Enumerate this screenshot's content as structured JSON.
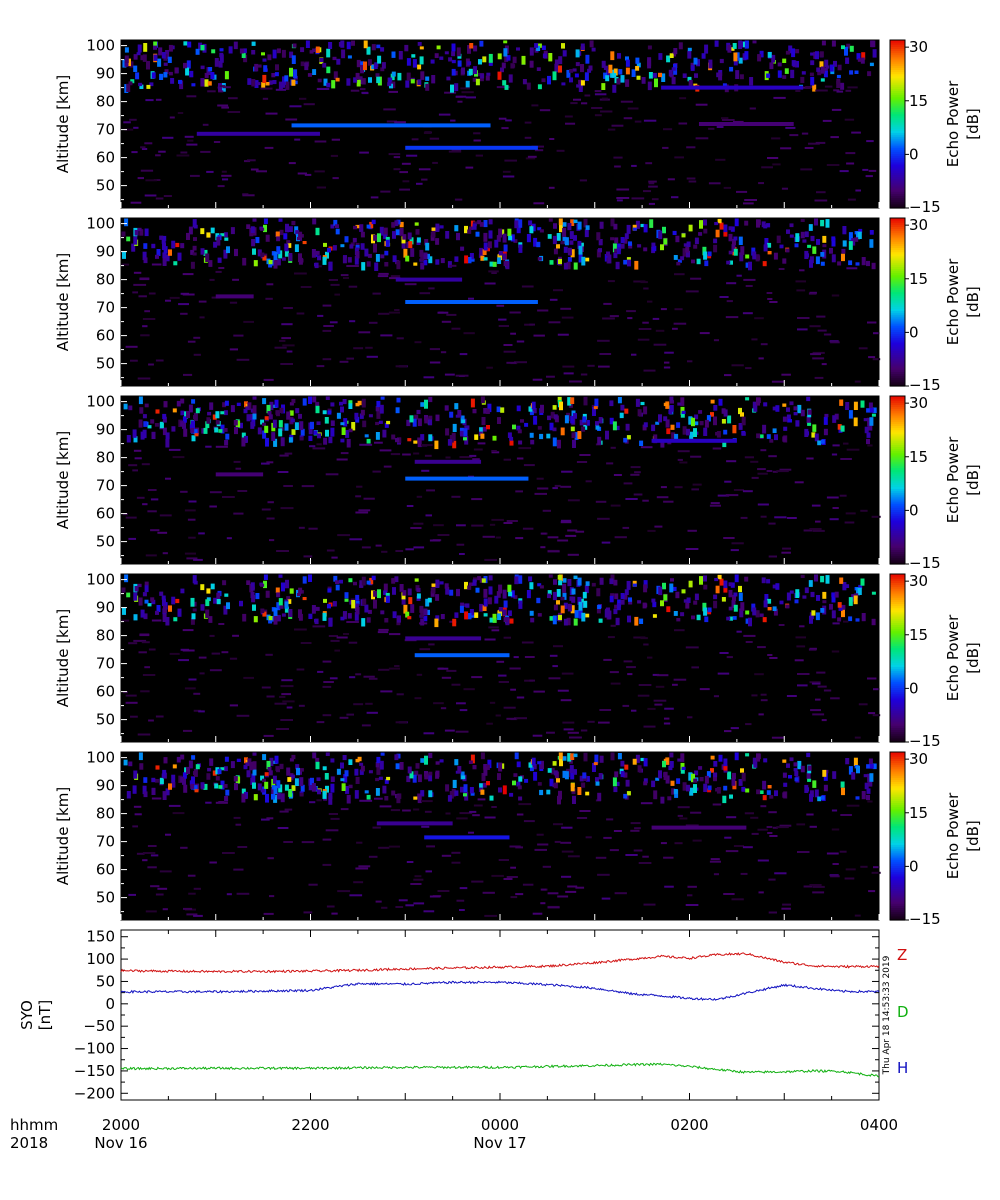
{
  "chart_data": [
    {
      "type": "heatmap",
      "ylabel": "Altitude [km]",
      "yticks": [
        "50",
        "60",
        "70",
        "80",
        "90",
        "100"
      ],
      "ylim": [
        42,
        102
      ],
      "xlim_hours": [
        20,
        28
      ],
      "colorbar": {
        "label_line1": "Echo Power",
        "label_line2": "[dB]",
        "ticks": [
          "30",
          "15",
          "0",
          "−15"
        ],
        "range": [
          -15,
          32
        ]
      },
      "features": [
        {
          "start": 21.8,
          "end": 23.9,
          "alt": 71.5,
          "dB": 2
        },
        {
          "start": 23.0,
          "end": 24.4,
          "alt": 63.5,
          "dB": 0
        },
        {
          "start": 20.8,
          "end": 22.1,
          "alt": 68.5,
          "dB": -7
        },
        {
          "start": 25.7,
          "end": 27.2,
          "alt": 85.0,
          "dB": -5
        },
        {
          "start": 26.1,
          "end": 27.1,
          "alt": 72.0,
          "dB": -10
        }
      ]
    },
    {
      "type": "heatmap",
      "ylabel": "Altitude [km]",
      "yticks": [
        "50",
        "60",
        "70",
        "80",
        "90",
        "100"
      ],
      "ylim": [
        42,
        102
      ],
      "xlim_hours": [
        20,
        28
      ],
      "colorbar": {
        "label_line1": "Echo Power",
        "label_line2": "[dB]",
        "ticks": [
          "30",
          "15",
          "0",
          "−15"
        ],
        "range": [
          -15,
          32
        ]
      },
      "features": [
        {
          "start": 23.0,
          "end": 24.4,
          "alt": 72.0,
          "dB": 2
        },
        {
          "start": 22.9,
          "end": 23.6,
          "alt": 80.0,
          "dB": -7
        },
        {
          "start": 21.0,
          "end": 21.4,
          "alt": 74.0,
          "dB": -10
        }
      ]
    },
    {
      "type": "heatmap",
      "ylabel": "Altitude [km]",
      "yticks": [
        "50",
        "60",
        "70",
        "80",
        "90",
        "100"
      ],
      "ylim": [
        42,
        102
      ],
      "xlim_hours": [
        20,
        28
      ],
      "colorbar": {
        "label_line1": "Echo Power",
        "label_line2": "[dB]",
        "ticks": [
          "30",
          "15",
          "0",
          "−15"
        ],
        "range": [
          -15,
          32
        ]
      },
      "features": [
        {
          "start": 23.0,
          "end": 24.3,
          "alt": 72.5,
          "dB": 2
        },
        {
          "start": 25.6,
          "end": 26.5,
          "alt": 86.0,
          "dB": -5
        },
        {
          "start": 21.0,
          "end": 21.5,
          "alt": 74.0,
          "dB": -10
        },
        {
          "start": 23.1,
          "end": 23.8,
          "alt": 78.5,
          "dB": -8
        }
      ]
    },
    {
      "type": "heatmap",
      "ylabel": "Altitude [km]",
      "yticks": [
        "50",
        "60",
        "70",
        "80",
        "90",
        "100"
      ],
      "ylim": [
        42,
        102
      ],
      "xlim_hours": [
        20,
        28
      ],
      "colorbar": {
        "label_line1": "Echo Power",
        "label_line2": "[dB]",
        "ticks": [
          "30",
          "15",
          "0",
          "−15"
        ],
        "range": [
          -15,
          32
        ]
      },
      "features": [
        {
          "start": 23.1,
          "end": 24.1,
          "alt": 73.0,
          "dB": 2
        },
        {
          "start": 23.0,
          "end": 23.8,
          "alt": 79.0,
          "dB": -8
        }
      ]
    },
    {
      "type": "heatmap",
      "ylabel": "Altitude [km]",
      "yticks": [
        "50",
        "60",
        "70",
        "80",
        "90",
        "100"
      ],
      "ylim": [
        42,
        102
      ],
      "xlim_hours": [
        20,
        28
      ],
      "colorbar": {
        "label_line1": "Echo Power",
        "label_line2": "[dB]",
        "ticks": [
          "30",
          "15",
          "0",
          "−15"
        ],
        "range": [
          -15,
          32
        ]
      },
      "features": [
        {
          "start": 23.2,
          "end": 24.1,
          "alt": 71.5,
          "dB": -2
        },
        {
          "start": 22.7,
          "end": 23.5,
          "alt": 76.5,
          "dB": -8
        },
        {
          "start": 25.6,
          "end": 26.6,
          "alt": 75.0,
          "dB": -10
        }
      ]
    },
    {
      "type": "line",
      "ylabel_line1": "SYO",
      "ylabel_line2": "[nT]",
      "yticks": [
        "150",
        "100",
        "50",
        "0",
        "−50",
        "−100",
        "−150",
        "−200"
      ],
      "ylim": [
        -215,
        165
      ],
      "xlim_hours": [
        20,
        28
      ],
      "series": [
        {
          "name": "Z",
          "color": "#d01010",
          "points": [
            [
              20.0,
              74
            ],
            [
              21.0,
              72
            ],
            [
              22.0,
              73
            ],
            [
              22.5,
              75
            ],
            [
              23.0,
              78
            ],
            [
              23.5,
              80
            ],
            [
              24.0,
              82
            ],
            [
              24.5,
              84
            ],
            [
              25.0,
              92
            ],
            [
              25.4,
              100
            ],
            [
              25.7,
              106
            ],
            [
              26.0,
              102
            ],
            [
              26.3,
              110
            ],
            [
              26.6,
              112
            ],
            [
              27.0,
              93
            ],
            [
              27.3,
              85
            ],
            [
              27.6,
              83
            ],
            [
              28.0,
              84
            ]
          ]
        },
        {
          "name": "D",
          "color": "#10b010",
          "points": [
            [
              20.0,
              -145
            ],
            [
              21.0,
              -144
            ],
            [
              22.0,
              -144
            ],
            [
              22.5,
              -143
            ],
            [
              23.0,
              -142
            ],
            [
              23.5,
              -142
            ],
            [
              24.0,
              -142
            ],
            [
              24.5,
              -140
            ],
            [
              25.0,
              -138
            ],
            [
              25.4,
              -136
            ],
            [
              25.7,
              -135
            ],
            [
              26.0,
              -140
            ],
            [
              26.3,
              -147
            ],
            [
              26.6,
              -153
            ],
            [
              27.0,
              -152
            ],
            [
              27.3,
              -150
            ],
            [
              27.6,
              -151
            ],
            [
              28.0,
              -162
            ]
          ]
        },
        {
          "name": "H",
          "color": "#1010c0",
          "points": [
            [
              20.0,
              27
            ],
            [
              21.0,
              27
            ],
            [
              22.0,
              30
            ],
            [
              22.5,
              45
            ],
            [
              23.0,
              44
            ],
            [
              23.5,
              48
            ],
            [
              24.0,
              48
            ],
            [
              24.5,
              43
            ],
            [
              25.0,
              35
            ],
            [
              25.4,
              22
            ],
            [
              25.7,
              18
            ],
            [
              26.0,
              12
            ],
            [
              26.3,
              10
            ],
            [
              26.6,
              24
            ],
            [
              27.0,
              42
            ],
            [
              27.3,
              35
            ],
            [
              27.6,
              28
            ],
            [
              28.0,
              27
            ]
          ]
        }
      ]
    }
  ],
  "x_axis": {
    "corner_label_1": "hhmm",
    "corner_label_2": "2018",
    "ticks": [
      {
        "label": "2000",
        "date": "Nov 16",
        "hour": 20
      },
      {
        "label": "2200",
        "date": "",
        "hour": 22
      },
      {
        "label": "0000",
        "date": "Nov 17",
        "hour": 24
      },
      {
        "label": "0200",
        "date": "",
        "hour": 26
      },
      {
        "label": "0400",
        "date": "",
        "hour": 28
      }
    ]
  },
  "timestamp": "Thu Apr 18 14:53:33 2019"
}
